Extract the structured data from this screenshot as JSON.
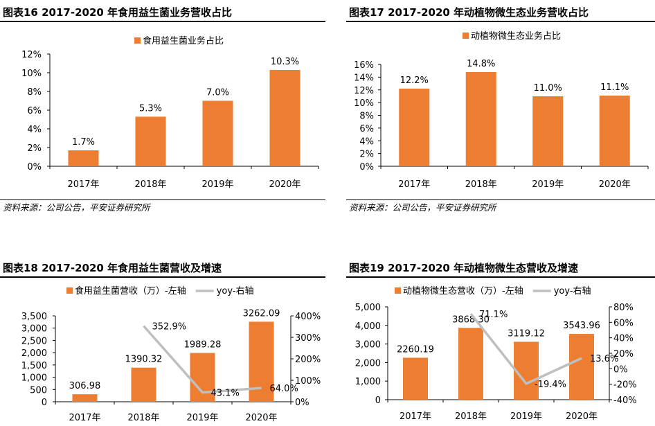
{
  "source_text": "资料来源：公司公告，平安证券研究所",
  "colors": {
    "bar": "#ED7D31",
    "line": "#BFBFBF",
    "axis": "#000000"
  },
  "chart_data": [
    {
      "id": "c16",
      "panel_title": "图表16   2017-2020 年食用益生菌业务营收占比",
      "type": "bar",
      "categories": [
        "2017年",
        "2018年",
        "2019年",
        "2020年"
      ],
      "series": [
        {
          "name": "食用益生菌业务占比",
          "values": [
            1.7,
            5.3,
            7.0,
            10.3
          ]
        }
      ],
      "value_labels": [
        "1.7%",
        "5.3%",
        "7.0%",
        "10.3%"
      ],
      "ylim": [
        0,
        12
      ],
      "yticks": [
        "0%",
        "2%",
        "4%",
        "6%",
        "8%",
        "10%",
        "12%"
      ],
      "grid": false,
      "legend": "top-center"
    },
    {
      "id": "c17",
      "panel_title": "图表17   2017-2020 年动植物微生态业务营收占比",
      "type": "bar",
      "categories": [
        "2017年",
        "2018年",
        "2019年",
        "2020年"
      ],
      "series": [
        {
          "name": "动植物微生态业务占比",
          "values": [
            12.2,
            14.8,
            11.0,
            11.1
          ]
        }
      ],
      "value_labels": [
        "12.2%",
        "14.8%",
        "11.0%",
        "11.1%"
      ],
      "ylim": [
        0,
        16
      ],
      "yticks": [
        "0%",
        "2%",
        "4%",
        "6%",
        "8%",
        "10%",
        "12%",
        "14%",
        "16%"
      ],
      "grid": false,
      "legend": "top-center"
    },
    {
      "id": "c18",
      "panel_title": "图表18   2017-2020 年食用益生菌营收及增速",
      "type": "bar",
      "categories": [
        "2017年",
        "2018年",
        "2019年",
        "2020年"
      ],
      "series": [
        {
          "name": "食用益生菌营收（万）-左轴",
          "type": "bar",
          "axis": "left",
          "values": [
            306.98,
            1390.32,
            1989.28,
            3262.09
          ],
          "labels": [
            "306.98",
            "1390.32",
            "1989.28",
            "3262.09"
          ]
        },
        {
          "name": "yoy-右轴",
          "type": "line",
          "axis": "right",
          "values": [
            null,
            352.9,
            43.1,
            64.0
          ],
          "labels": [
            "",
            "352.9%",
            "43.1%",
            "64.0%"
          ]
        }
      ],
      "ylim_left": [
        0,
        3500
      ],
      "yticks_left": [
        "0",
        "500",
        "1,000",
        "1,500",
        "2,000",
        "2,500",
        "3,000",
        "3,500"
      ],
      "ylim_right": [
        0,
        400
      ],
      "yticks_right": [
        "0%",
        "100%",
        "200%",
        "300%",
        "400%"
      ],
      "grid": false,
      "legend": "top-center"
    },
    {
      "id": "c19",
      "panel_title": "图表19   2017-2020 年动植物微生态营收及增速",
      "type": "bar",
      "categories": [
        "2017年",
        "2018年",
        "2019年",
        "2020年"
      ],
      "series": [
        {
          "name": "动植物微生态营收（万）-左轴",
          "type": "bar",
          "axis": "left",
          "values": [
            2260.19,
            3868.3,
            3119.12,
            3543.96
          ],
          "labels": [
            "2260.19",
            "3868.30",
            "3119.12",
            "3543.96"
          ]
        },
        {
          "name": "yoy-右轴",
          "type": "line",
          "axis": "right",
          "values": [
            null,
            71.1,
            -19.4,
            13.6
          ],
          "labels": [
            "",
            "71.1%",
            "-19.4%",
            "13.6%"
          ]
        }
      ],
      "ylim_left": [
        0,
        5000
      ],
      "yticks_left": [
        "0",
        "1,000",
        "2,000",
        "3,000",
        "4,000",
        "5,000"
      ],
      "ylim_right": [
        -40,
        80
      ],
      "yticks_right": [
        "-40%",
        "-20%",
        "0%",
        "20%",
        "40%",
        "60%",
        "80%"
      ],
      "grid": false,
      "legend": "top-center"
    }
  ]
}
